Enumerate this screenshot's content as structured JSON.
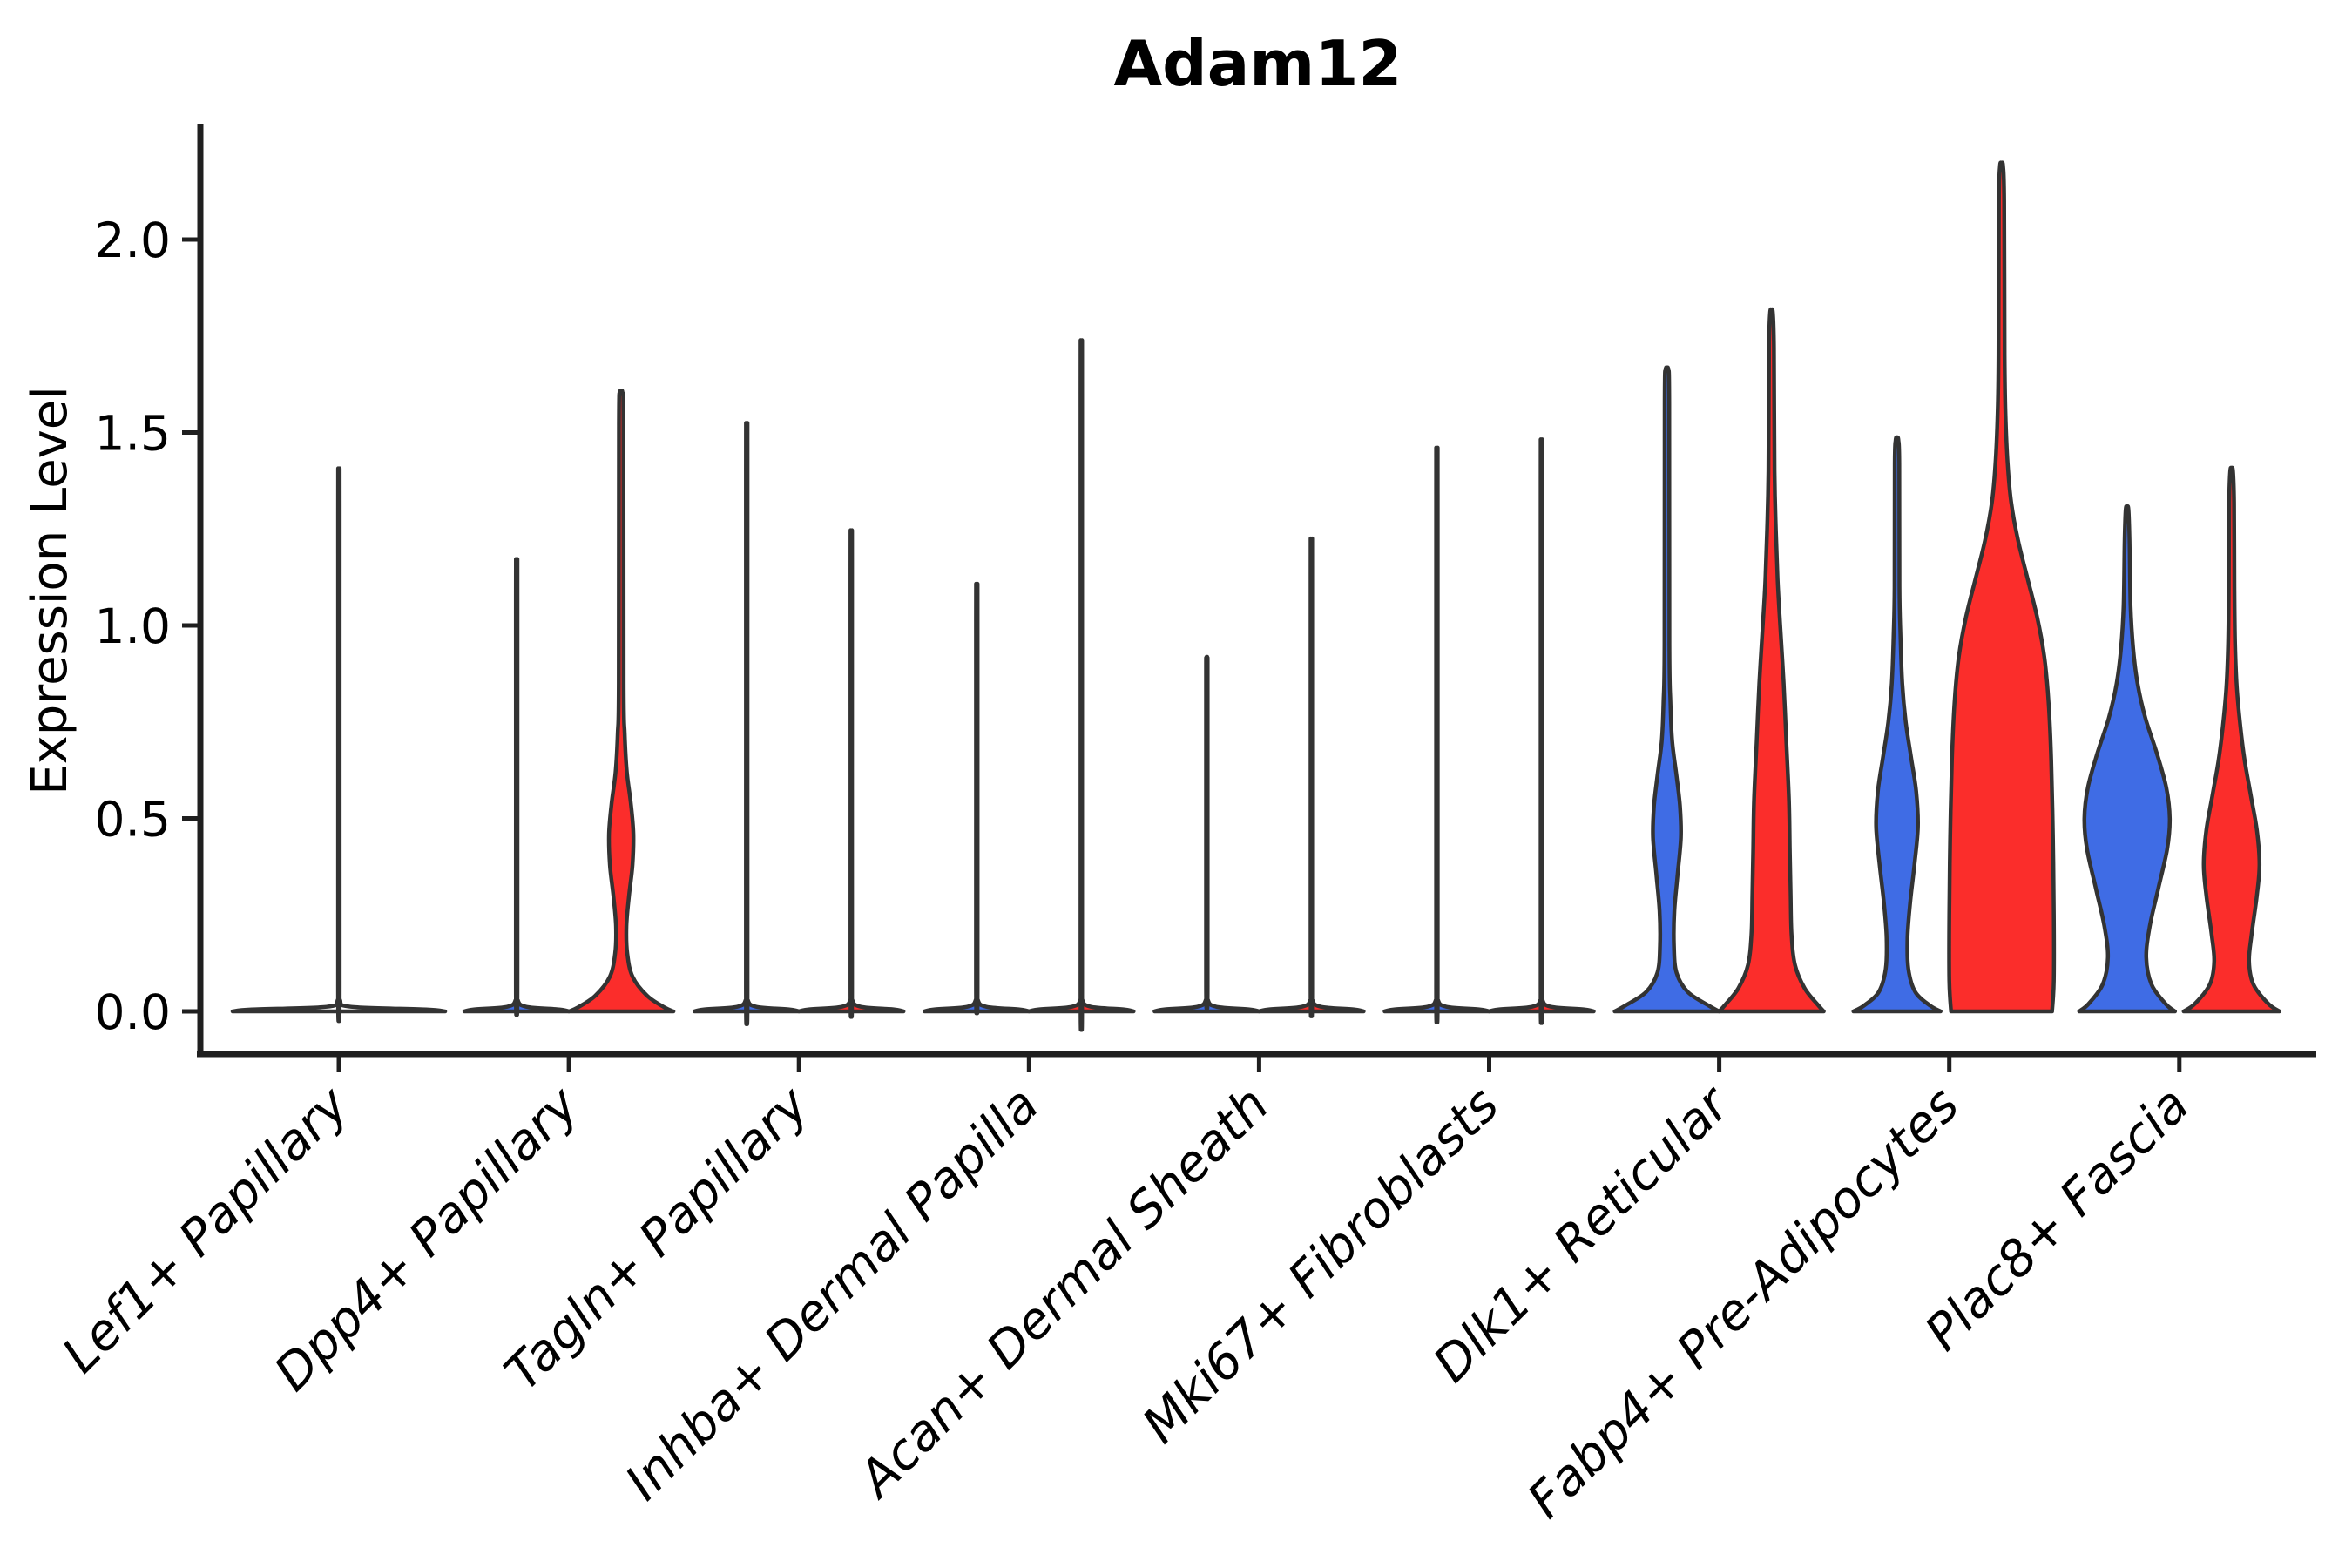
{
  "figure": {
    "title": "Adam12",
    "background": "#ffffff"
  },
  "chart_data": {
    "type": "violin",
    "title": "Adam12",
    "xlabel": "",
    "ylabel": "Expression Level",
    "ylim": [
      -0.11,
      2.3
    ],
    "yticks": [
      0.0,
      0.5,
      1.0,
      1.5,
      2.0
    ],
    "ytick_labels": [
      "0.0",
      "0.5",
      "1.0",
      "1.5",
      "2.0"
    ],
    "grid": false,
    "legend": "none",
    "categories": [
      "Lef1+ Papillary",
      "Dpp4+ Papillary",
      "Tagln+ Papillary",
      "Inhba+ Dermal Papilla",
      "Acan+ Dermal Sheath",
      "Mki67+ Fibroblasts",
      "Dlk1+ Reticular",
      "Fabp4+ Pre-Adipocytes",
      "Plac8+ Fascia"
    ],
    "colors": {
      "blue": "#3F6CE5",
      "red": "#FB2D2B",
      "outline": "#333333",
      "axis": "#1f1f1f"
    },
    "groups": [
      {
        "category": "Lef1+ Papillary",
        "violins": [
          {
            "side": "center",
            "color_name": "none",
            "color": null,
            "max_value": 1.37,
            "profile": [
              [
                0,
                122
              ],
              [
                0.005,
                100
              ],
              [
                0.012,
                14
              ],
              [
                0.03,
                1.3
              ],
              [
                0.08,
                0.9
              ],
              [
                1.29,
                0.9
              ],
              [
                1.37,
                0.7
              ]
            ]
          }
        ]
      },
      {
        "category": "Dpp4+ Papillary",
        "violins": [
          {
            "side": "left",
            "color_name": "blue",
            "color": "#3F6CE5",
            "max_value": 1.15,
            "profile": [
              [
                0,
                60
              ],
              [
                0.005,
                50
              ],
              [
                0.012,
                11
              ],
              [
                0.03,
                1.2
              ],
              [
                0.08,
                0.9
              ],
              [
                1.07,
                0.9
              ],
              [
                1.15,
                0.7
              ]
            ]
          },
          {
            "side": "right",
            "color_name": "red",
            "color": "#FB2D2B",
            "max_value": 1.6,
            "profile": [
              [
                0,
                60
              ],
              [
                0.01,
                50
              ],
              [
                0.04,
                30
              ],
              [
                0.09,
                13
              ],
              [
                0.15,
                7
              ],
              [
                0.22,
                6
              ],
              [
                0.3,
                9
              ],
              [
                0.38,
                13
              ],
              [
                0.46,
                14
              ],
              [
                0.54,
                11
              ],
              [
                0.62,
                6.5
              ],
              [
                0.72,
                4
              ],
              [
                0.85,
                2.8
              ],
              [
                1.52,
                2.6
              ],
              [
                1.6,
                1.6
              ]
            ]
          }
        ]
      },
      {
        "category": "Tagln+ Papillary",
        "violins": [
          {
            "side": "left",
            "color_name": "blue",
            "color": "#3F6CE5",
            "max_value": 1.48,
            "profile": [
              [
                0,
                60
              ],
              [
                0.005,
                50
              ],
              [
                0.012,
                11
              ],
              [
                0.03,
                1.2
              ],
              [
                0.08,
                0.9
              ],
              [
                1.4,
                0.9
              ],
              [
                1.48,
                0.7
              ]
            ]
          },
          {
            "side": "right",
            "color_name": "red",
            "color": "#FB2D2B",
            "max_value": 1.22,
            "profile": [
              [
                0,
                60
              ],
              [
                0.005,
                50
              ],
              [
                0.012,
                11
              ],
              [
                0.03,
                1.2
              ],
              [
                0.08,
                0.9
              ],
              [
                1.14,
                0.9
              ],
              [
                1.22,
                0.7
              ]
            ]
          }
        ]
      },
      {
        "category": "Inhba+ Dermal Papilla",
        "violins": [
          {
            "side": "left",
            "color_name": "blue",
            "color": "#3F6CE5",
            "max_value": 1.09,
            "profile": [
              [
                0,
                60
              ],
              [
                0.005,
                50
              ],
              [
                0.012,
                11
              ],
              [
                0.03,
                1.2
              ],
              [
                0.08,
                0.9
              ],
              [
                1.01,
                0.9
              ],
              [
                1.09,
                0.7
              ]
            ]
          },
          {
            "side": "right",
            "color_name": "red",
            "color": "#FB2D2B",
            "max_value": 1.68,
            "profile": [
              [
                0,
                60
              ],
              [
                0.005,
                50
              ],
              [
                0.012,
                11
              ],
              [
                0.03,
                1.2
              ],
              [
                0.08,
                0.9
              ],
              [
                1.6,
                0.9
              ],
              [
                1.68,
                0.7
              ]
            ]
          }
        ]
      },
      {
        "category": "Acan+ Dermal Sheath",
        "violins": [
          {
            "side": "left",
            "color_name": "blue",
            "color": "#3F6CE5",
            "max_value": 0.91,
            "profile": [
              [
                0,
                60
              ],
              [
                0.005,
                50
              ],
              [
                0.012,
                11
              ],
              [
                0.03,
                1.2
              ],
              [
                0.08,
                0.9
              ],
              [
                0.83,
                0.9
              ],
              [
                0.91,
                0.7
              ]
            ]
          },
          {
            "side": "right",
            "color_name": "red",
            "color": "#FB2D2B",
            "max_value": 1.2,
            "profile": [
              [
                0,
                60
              ],
              [
                0.005,
                50
              ],
              [
                0.012,
                11
              ],
              [
                0.03,
                1.2
              ],
              [
                0.08,
                0.9
              ],
              [
                1.12,
                0.9
              ],
              [
                1.2,
                0.7
              ]
            ]
          }
        ]
      },
      {
        "category": "Mki67+ Fibroblasts",
        "violins": [
          {
            "side": "left",
            "color_name": "blue",
            "color": "#3F6CE5",
            "max_value": 1.42,
            "profile": [
              [
                0,
                60
              ],
              [
                0.005,
                50
              ],
              [
                0.012,
                11
              ],
              [
                0.03,
                1.2
              ],
              [
                0.08,
                0.9
              ],
              [
                1.34,
                0.9
              ],
              [
                1.42,
                0.7
              ]
            ]
          },
          {
            "side": "right",
            "color_name": "red",
            "color": "#FB2D2B",
            "max_value": 1.44,
            "profile": [
              [
                0,
                60
              ],
              [
                0.005,
                50
              ],
              [
                0.012,
                11
              ],
              [
                0.03,
                1.2
              ],
              [
                0.08,
                0.9
              ],
              [
                1.36,
                0.9
              ],
              [
                1.44,
                0.7
              ]
            ]
          }
        ]
      },
      {
        "category": "Dlk1+ Reticular",
        "violins": [
          {
            "side": "left",
            "color_name": "blue",
            "color": "#3F6CE5",
            "max_value": 1.66,
            "profile": [
              [
                0,
                60
              ],
              [
                0.015,
                48
              ],
              [
                0.05,
                24
              ],
              [
                0.1,
                11
              ],
              [
                0.17,
                8
              ],
              [
                0.26,
                8.5
              ],
              [
                0.35,
                12
              ],
              [
                0.45,
                16
              ],
              [
                0.53,
                15
              ],
              [
                0.61,
                11
              ],
              [
                0.7,
                6
              ],
              [
                0.8,
                4
              ],
              [
                0.95,
                2.8
              ],
              [
                1.58,
                2.6
              ],
              [
                1.66,
                1.6
              ]
            ]
          },
          {
            "side": "right",
            "color_name": "red",
            "color": "#FB2D2B",
            "max_value": 1.81,
            "profile": [
              [
                0,
                60
              ],
              [
                0.02,
                52
              ],
              [
                0.06,
                38
              ],
              [
                0.12,
                27
              ],
              [
                0.2,
                23
              ],
              [
                0.3,
                22
              ],
              [
                0.42,
                21
              ],
              [
                0.55,
                20
              ],
              [
                0.7,
                17
              ],
              [
                0.85,
                14
              ],
              [
                1.0,
                10
              ],
              [
                1.12,
                7
              ],
              [
                1.25,
                5
              ],
              [
                1.4,
                3.5
              ],
              [
                1.72,
                2.8
              ],
              [
                1.81,
                1.6
              ]
            ]
          }
        ]
      },
      {
        "category": "Fabp4+ Pre-Adipocytes",
        "violins": [
          {
            "side": "left",
            "color_name": "blue",
            "color": "#3F6CE5",
            "max_value": 1.48,
            "profile": [
              [
                0,
                50
              ],
              [
                0.015,
                38
              ],
              [
                0.05,
                21
              ],
              [
                0.11,
                13
              ],
              [
                0.19,
                12
              ],
              [
                0.28,
                15
              ],
              [
                0.38,
                20
              ],
              [
                0.48,
                24
              ],
              [
                0.57,
                22
              ],
              [
                0.66,
                16
              ],
              [
                0.75,
                10
              ],
              [
                0.85,
                6
              ],
              [
                0.97,
                4
              ],
              [
                1.1,
                2.8
              ],
              [
                1.42,
                2.6
              ],
              [
                1.48,
                1.6
              ]
            ]
          },
          {
            "side": "right",
            "color_name": "red",
            "color": "#FB2D2B",
            "max_value": 2.19,
            "profile": [
              [
                0,
                58
              ],
              [
                0.08,
                60
              ],
              [
                0.25,
                60
              ],
              [
                0.45,
                59
              ],
              [
                0.65,
                57
              ],
              [
                0.8,
                54
              ],
              [
                0.92,
                49
              ],
              [
                1.02,
                41
              ],
              [
                1.12,
                30
              ],
              [
                1.22,
                19
              ],
              [
                1.32,
                11
              ],
              [
                1.42,
                7
              ],
              [
                1.55,
                4.5
              ],
              [
                1.7,
                3.5
              ],
              [
                2.1,
                3
              ],
              [
                2.19,
                1.8
              ]
            ]
          }
        ]
      },
      {
        "category": "Plac8+ Fascia",
        "violins": [
          {
            "side": "left",
            "color_name": "blue",
            "color": "#3F6CE5",
            "max_value": 1.3,
            "profile": [
              [
                0,
                55
              ],
              [
                0.02,
                44
              ],
              [
                0.07,
                28
              ],
              [
                0.14,
                22
              ],
              [
                0.22,
                26
              ],
              [
                0.32,
                36
              ],
              [
                0.42,
                46
              ],
              [
                0.5,
                49
              ],
              [
                0.58,
                45
              ],
              [
                0.67,
                34
              ],
              [
                0.76,
                21
              ],
              [
                0.85,
                12
              ],
              [
                0.94,
                7
              ],
              [
                1.05,
                4
              ],
              [
                1.22,
                2.8
              ],
              [
                1.3,
                1.6
              ]
            ]
          },
          {
            "side": "right",
            "color_name": "red",
            "color": "#FB2D2B",
            "max_value": 1.4,
            "profile": [
              [
                0,
                55
              ],
              [
                0.02,
                42
              ],
              [
                0.07,
                25
              ],
              [
                0.13,
                20
              ],
              [
                0.2,
                23
              ],
              [
                0.3,
                29
              ],
              [
                0.38,
                32
              ],
              [
                0.47,
                29
              ],
              [
                0.56,
                22
              ],
              [
                0.65,
                15
              ],
              [
                0.74,
                10
              ],
              [
                0.84,
                6
              ],
              [
                0.95,
                4
              ],
              [
                1.1,
                3.2
              ],
              [
                1.32,
                2.8
              ],
              [
                1.4,
                1.6
              ]
            ]
          }
        ]
      }
    ]
  }
}
